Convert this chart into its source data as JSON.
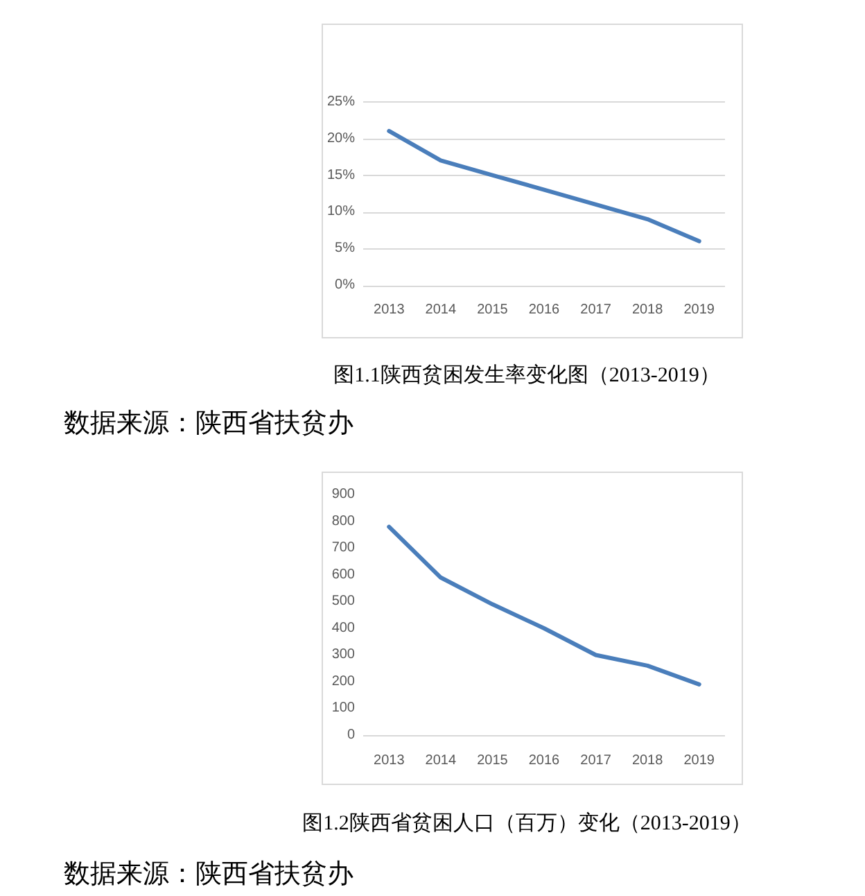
{
  "chart_data": [
    {
      "type": "line",
      "title": "图1.1陕西贫困发生率变化图（2013-2019）",
      "annotations": [
        "数据来源：陕西省扶贫办"
      ],
      "categories": [
        "2013",
        "2014",
        "2015",
        "2016",
        "2017",
        "2018",
        "2019"
      ],
      "values": [
        21,
        17,
        15,
        13,
        11,
        9,
        6
      ],
      "color": "#4a7ebb",
      "ylim": [
        0,
        25
      ],
      "yticks": [
        {
          "value": 0,
          "label": "0%"
        },
        {
          "value": 5,
          "label": "5%"
        },
        {
          "value": 10,
          "label": "10%"
        },
        {
          "value": 15,
          "label": "15%"
        },
        {
          "value": 20,
          "label": "20%"
        },
        {
          "value": 25,
          "label": "25%"
        }
      ],
      "grid": "y"
    },
    {
      "type": "line",
      "title": "图1.2陕西省贫困人口（百万）变化（2013-2019）",
      "annotations": [
        "数据来源：陕西省扶贫办"
      ],
      "categories": [
        "2013",
        "2014",
        "2015",
        "2016",
        "2017",
        "2018",
        "2019"
      ],
      "values": [
        780,
        590,
        490,
        400,
        300,
        260,
        190
      ],
      "color": "#4a7ebb",
      "ylim": [
        0,
        900
      ],
      "yticks": [
        0,
        100,
        200,
        300,
        400,
        500,
        600,
        700,
        800,
        900
      ]
    }
  ]
}
